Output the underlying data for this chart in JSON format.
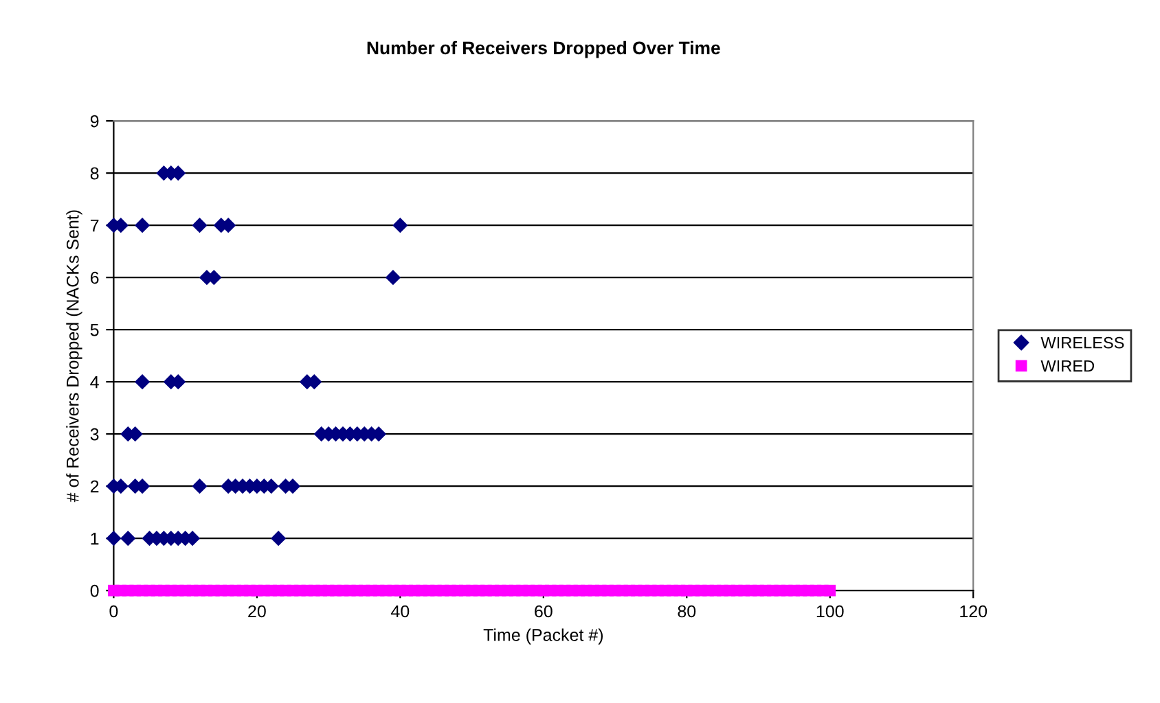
{
  "chart_data": {
    "type": "scatter",
    "title": "Number of Receivers Dropped Over Time",
    "xlabel": "Time (Packet #)",
    "ylabel": "# of Receivers Dropped (NACKs Sent)",
    "xlim": [
      0,
      120
    ],
    "xticks": [
      0,
      20,
      40,
      60,
      80,
      100,
      120
    ],
    "ylim": [
      0,
      9
    ],
    "yticks": [
      0,
      1,
      2,
      3,
      4,
      5,
      6,
      7,
      8,
      9
    ],
    "grid": "y",
    "legend": "right",
    "series": [
      {
        "name": "WIRELESS",
        "color": "#000080",
        "marker": "diamond",
        "x": [
          0,
          2,
          5,
          6,
          7,
          8,
          9,
          10,
          11,
          23,
          0,
          1,
          3,
          4,
          12,
          16,
          17,
          18,
          19,
          20,
          21,
          22,
          24,
          25,
          2,
          3,
          29,
          30,
          31,
          32,
          33,
          34,
          35,
          36,
          37,
          4,
          8,
          9,
          27,
          28,
          13,
          14,
          39,
          0,
          1,
          4,
          12,
          15,
          16,
          40,
          7,
          8,
          9
        ],
        "values": [
          1,
          1,
          1,
          1,
          1,
          1,
          1,
          1,
          1,
          1,
          2,
          2,
          2,
          2,
          2,
          2,
          2,
          2,
          2,
          2,
          2,
          2,
          2,
          2,
          3,
          3,
          3,
          3,
          3,
          3,
          3,
          3,
          3,
          3,
          3,
          4,
          4,
          4,
          4,
          4,
          6,
          6,
          6,
          7,
          7,
          7,
          7,
          7,
          7,
          7,
          8,
          8,
          8
        ]
      },
      {
        "name": "WIRED",
        "color": "#ff00ff",
        "marker": "square",
        "x": [
          0,
          1,
          2,
          3,
          4,
          5,
          6,
          7,
          8,
          9,
          10,
          11,
          12,
          13,
          14,
          15,
          16,
          17,
          18,
          19,
          20,
          21,
          22,
          23,
          24,
          25,
          26,
          27,
          28,
          29,
          30,
          31,
          32,
          33,
          34,
          35,
          36,
          37,
          38,
          39,
          40,
          41,
          42,
          43,
          44,
          45,
          46,
          47,
          48,
          49,
          50,
          51,
          52,
          53,
          54,
          55,
          56,
          57,
          58,
          59,
          60,
          61,
          62,
          63,
          64,
          65,
          66,
          67,
          68,
          69,
          70,
          71,
          72,
          73,
          74,
          75,
          76,
          77,
          78,
          79,
          80,
          81,
          82,
          83,
          84,
          85,
          86,
          87,
          88,
          89,
          90,
          91,
          92,
          93,
          94,
          95,
          96,
          97,
          98,
          99,
          100
        ],
        "values": [
          0,
          0,
          0,
          0,
          0,
          0,
          0,
          0,
          0,
          0,
          0,
          0,
          0,
          0,
          0,
          0,
          0,
          0,
          0,
          0,
          0,
          0,
          0,
          0,
          0,
          0,
          0,
          0,
          0,
          0,
          0,
          0,
          0,
          0,
          0,
          0,
          0,
          0,
          0,
          0,
          0,
          0,
          0,
          0,
          0,
          0,
          0,
          0,
          0,
          0,
          0,
          0,
          0,
          0,
          0,
          0,
          0,
          0,
          0,
          0,
          0,
          0,
          0,
          0,
          0,
          0,
          0,
          0,
          0,
          0,
          0,
          0,
          0,
          0,
          0,
          0,
          0,
          0,
          0,
          0,
          0,
          0,
          0,
          0,
          0,
          0,
          0,
          0,
          0,
          0,
          0,
          0,
          0,
          0,
          0,
          0,
          0,
          0,
          0,
          0,
          0
        ]
      }
    ]
  }
}
